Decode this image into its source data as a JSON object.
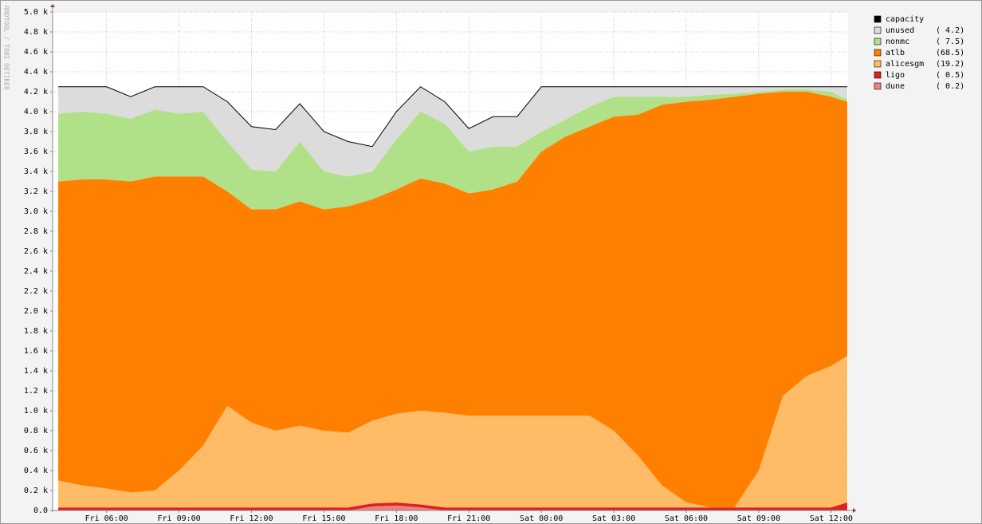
{
  "chart_data": {
    "type": "stacked-area",
    "watermark": "RRDTOOL / TOBI OETIKER",
    "x": [
      "Fri 04:00",
      "Fri 05:00",
      "Fri 06:00",
      "Fri 07:00",
      "Fri 08:00",
      "Fri 09:00",
      "Fri 10:00",
      "Fri 11:00",
      "Fri 12:00",
      "Fri 13:00",
      "Fri 14:00",
      "Fri 15:00",
      "Fri 16:00",
      "Fri 17:00",
      "Fri 18:00",
      "Fri 19:00",
      "Fri 20:00",
      "Fri 21:00",
      "Fri 22:00",
      "Fri 23:00",
      "Sat 00:00",
      "Sat 01:00",
      "Sat 02:00",
      "Sat 03:00",
      "Sat 04:00",
      "Sat 05:00",
      "Sat 06:00",
      "Sat 07:00",
      "Sat 08:00",
      "Sat 09:00",
      "Sat 10:00",
      "Sat 11:00",
      "Sat 12:00",
      "Sat 12:40"
    ],
    "xlim": [
      "Fri 03:46",
      "Sat 12:42"
    ],
    "xticks": [
      "Fri 06:00",
      "Fri 09:00",
      "Fri 12:00",
      "Fri 15:00",
      "Fri 18:00",
      "Fri 21:00",
      "Sat 00:00",
      "Sat 03:00",
      "Sat 06:00",
      "Sat 09:00",
      "Sat 12:00"
    ],
    "ylim": [
      0,
      5000
    ],
    "yticks": [
      {
        "value": 0,
        "label": "0.0"
      },
      {
        "value": 200,
        "label": "0.2 k"
      },
      {
        "value": 400,
        "label": "0.4 k"
      },
      {
        "value": 600,
        "label": "0.6 k"
      },
      {
        "value": 800,
        "label": "0.8 k"
      },
      {
        "value": 1000,
        "label": "1.0 k"
      },
      {
        "value": 1200,
        "label": "1.2 k"
      },
      {
        "value": 1400,
        "label": "1.4 k"
      },
      {
        "value": 1600,
        "label": "1.6 k"
      },
      {
        "value": 1800,
        "label": "1.8 k"
      },
      {
        "value": 2000,
        "label": "2.0 k"
      },
      {
        "value": 2200,
        "label": "2.2 k"
      },
      {
        "value": 2400,
        "label": "2.4 k"
      },
      {
        "value": 2600,
        "label": "2.6 k"
      },
      {
        "value": 2800,
        "label": "2.8 k"
      },
      {
        "value": 3000,
        "label": "3.0 k"
      },
      {
        "value": 3200,
        "label": "3.2 k"
      },
      {
        "value": 3400,
        "label": "3.4 k"
      },
      {
        "value": 3600,
        "label": "3.6 k"
      },
      {
        "value": 3800,
        "label": "3.8 k"
      },
      {
        "value": 4000,
        "label": "4.0 k"
      },
      {
        "value": 4200,
        "label": "4.2 k"
      },
      {
        "value": 4400,
        "label": "4.4 k"
      },
      {
        "value": 4600,
        "label": "4.6 k"
      },
      {
        "value": 4800,
        "label": "4.8 k"
      },
      {
        "value": 5000,
        "label": "5.0 k"
      }
    ],
    "grid": true,
    "legend": "right",
    "series": [
      {
        "name": "dune",
        "legend_note": "( 0.2)",
        "color": "#f08080",
        "values": [
          0,
          0,
          0,
          0,
          0,
          0,
          0,
          0,
          0,
          0,
          0,
          0,
          0,
          40,
          50,
          30,
          0,
          0,
          0,
          0,
          0,
          0,
          0,
          0,
          0,
          0,
          0,
          0,
          0,
          0,
          0,
          0,
          0,
          0
        ]
      },
      {
        "name": "ligo",
        "legend_note": "( 0.5)",
        "color": "#dd2020",
        "values": [
          30,
          30,
          30,
          30,
          30,
          30,
          30,
          30,
          30,
          30,
          30,
          30,
          30,
          30,
          30,
          30,
          30,
          30,
          30,
          30,
          30,
          30,
          30,
          30,
          30,
          30,
          30,
          30,
          30,
          30,
          30,
          30,
          30,
          80
        ]
      },
      {
        "name": "alicesgm",
        "legend_note": "(19.2)",
        "color": "#ffbb66",
        "values": [
          270,
          220,
          190,
          150,
          170,
          370,
          620,
          1020,
          850,
          770,
          820,
          770,
          750,
          830,
          890,
          940,
          950,
          920,
          920,
          920,
          920,
          920,
          920,
          770,
          520,
          220,
          50,
          0,
          0,
          370,
          1120,
          1320,
          1420,
          1470
        ]
      },
      {
        "name": "atlb",
        "legend_note": "(68.5)",
        "color": "#ff7f00",
        "values": [
          3000,
          3070,
          3100,
          3120,
          3150,
          2950,
          2700,
          2150,
          2140,
          2220,
          2250,
          2220,
          2270,
          2220,
          2250,
          2330,
          2300,
          2230,
          2270,
          2350,
          2650,
          2800,
          2900,
          3150,
          3420,
          3820,
          4020,
          4090,
          4120,
          3780,
          3050,
          2850,
          2700,
          2550
        ]
      },
      {
        "name": "nonmc",
        "legend_note": "( 7.5)",
        "color": "#b0e088",
        "values": [
          680,
          680,
          660,
          630,
          670,
          630,
          650,
          500,
          400,
          380,
          600,
          380,
          300,
          280,
          500,
          670,
          600,
          420,
          430,
          350,
          200,
          170,
          200,
          200,
          180,
          80,
          50,
          50,
          30,
          20,
          20,
          20,
          50,
          20
        ]
      },
      {
        "name": "unused",
        "legend_note": "( 4.2)",
        "color": "#dcdcdc",
        "values": [
          270,
          250,
          270,
          220,
          230,
          270,
          250,
          400,
          430,
          420,
          380,
          400,
          350,
          250,
          280,
          250,
          220,
          230,
          300,
          300,
          450,
          330,
          200,
          100,
          100,
          100,
          100,
          80,
          70,
          50,
          30,
          30,
          50,
          130
        ]
      }
    ],
    "capacity": {
      "name": "capacity",
      "color": "#000000",
      "values": [
        4250,
        4250,
        4250,
        4150,
        4250,
        4250,
        4250,
        4100,
        3850,
        3820,
        4080,
        3800,
        3700,
        3650,
        4000,
        4250,
        4100,
        3830,
        3950,
        3950,
        4250,
        4250,
        4250,
        4250,
        4250,
        4250,
        4250,
        4250,
        4250,
        4250,
        4250,
        4250,
        4250,
        4250
      ]
    }
  }
}
